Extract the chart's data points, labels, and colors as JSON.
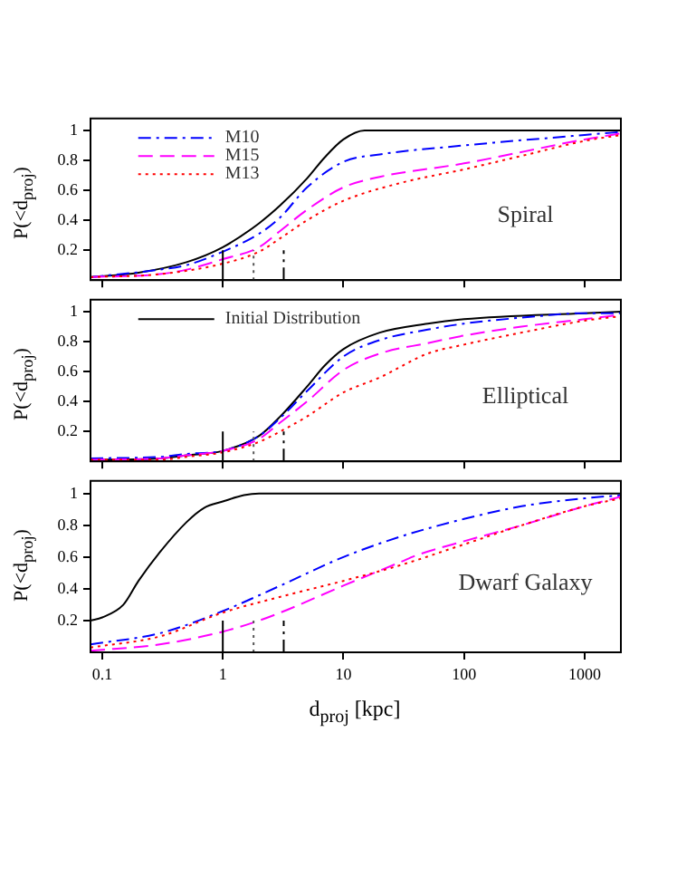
{
  "chart_data": [
    {
      "type": "line",
      "ylabel": "P(<d$_{proj}$)",
      "xlim": [
        0.08,
        2000
      ],
      "xticks": [
        0.1,
        1,
        10,
        100,
        1000
      ],
      "ylim": [
        0,
        1.08
      ],
      "yticks": [
        0.2,
        0.4,
        0.6,
        0.8,
        1
      ],
      "log": "x",
      "grid": false,
      "legend": "top left",
      "marker": "none",
      "tick_labels": "y",
      "annotations": [
        "Spiral"
      ],
      "series": [
        {
          "color": "#000000",
          "line_style": "solid",
          "x": [
            0.08,
            0.2,
            0.5,
            1,
            2,
            3,
            5,
            7,
            10,
            15,
            2000
          ],
          "values": [
            0.02,
            0.05,
            0.12,
            0.22,
            0.38,
            0.5,
            0.68,
            0.82,
            0.94,
            1,
            1
          ]
        },
        {
          "name": "M10",
          "color": "#0000ff",
          "line_style": "dashdot",
          "x": [
            0.08,
            0.3,
            0.5,
            1,
            2,
            3,
            5,
            10,
            20,
            100,
            1000,
            2000
          ],
          "values": [
            0.02,
            0.07,
            0.1,
            0.19,
            0.31,
            0.42,
            0.62,
            0.79,
            0.84,
            0.9,
            0.97,
            0.99
          ]
        },
        {
          "name": "M15",
          "color": "#ff00ff",
          "line_style": "dashed",
          "x": [
            0.08,
            0.3,
            0.5,
            1,
            2,
            3,
            5,
            10,
            20,
            100,
            1000,
            2000
          ],
          "values": [
            0.02,
            0.04,
            0.07,
            0.14,
            0.22,
            0.33,
            0.47,
            0.62,
            0.69,
            0.78,
            0.94,
            0.98
          ]
        },
        {
          "name": "M13",
          "color": "#ff0000",
          "line_style": "dotted",
          "x": [
            0.08,
            0.3,
            1,
            2,
            3,
            5,
            10,
            30,
            100,
            300,
            1000,
            2000
          ],
          "values": [
            0.02,
            0.04,
            0.11,
            0.19,
            0.28,
            0.4,
            0.53,
            0.65,
            0.74,
            0.83,
            0.93,
            0.97
          ]
        },
        {
          "color": "#000000",
          "line_style": "solid",
          "x": [
            1,
            1
          ],
          "values": [
            0,
            0.2
          ]
        },
        {
          "color": "#555555",
          "line_style": "dotted",
          "x": [
            1.8,
            1.8
          ],
          "values": [
            0,
            0.2
          ]
        },
        {
          "color": "#000000",
          "line_style": "dashdot",
          "x": [
            3.2,
            3.2
          ],
          "values": [
            0,
            0.2
          ]
        }
      ]
    },
    {
      "type": "line",
      "ylabel": "P(<d$_{proj}$)",
      "xlim": [
        0.08,
        2000
      ],
      "xticks": [
        0.1,
        1,
        10,
        100,
        1000
      ],
      "ylim": [
        0,
        1.08
      ],
      "yticks": [
        0.2,
        0.4,
        0.6,
        0.8,
        1
      ],
      "log": "x",
      "grid": false,
      "legend": "top left",
      "marker": "none",
      "tick_labels": "y",
      "annotations": [
        "Elliptical"
      ],
      "series": [
        {
          "name": "Initial Distribution",
          "color": "#000000",
          "line_style": "solid",
          "x": [
            0.08,
            0.3,
            0.5,
            1,
            2,
            3,
            5,
            7,
            10,
            20,
            50,
            100,
            1000,
            2000
          ],
          "values": [
            0.01,
            0.02,
            0.04,
            0.07,
            0.17,
            0.3,
            0.5,
            0.64,
            0.75,
            0.86,
            0.92,
            0.95,
            0.99,
            1
          ]
        },
        {
          "color": "#0000ff",
          "line_style": "dashdot",
          "x": [
            0.08,
            0.3,
            0.5,
            1,
            2,
            3,
            5,
            10,
            20,
            50,
            100,
            300,
            1000,
            2000
          ],
          "values": [
            0.02,
            0.03,
            0.05,
            0.07,
            0.17,
            0.29,
            0.47,
            0.7,
            0.81,
            0.88,
            0.92,
            0.96,
            0.99,
            0.99
          ]
        },
        {
          "color": "#ff00ff",
          "line_style": "dashed",
          "x": [
            0.08,
            0.3,
            0.5,
            1,
            2,
            3,
            5,
            10,
            20,
            50,
            100,
            300,
            1000,
            2000
          ],
          "values": [
            0.01,
            0.02,
            0.04,
            0.07,
            0.15,
            0.26,
            0.4,
            0.61,
            0.72,
            0.79,
            0.84,
            0.9,
            0.95,
            0.98
          ]
        },
        {
          "color": "#ff0000",
          "line_style": "dotted",
          "x": [
            0.08,
            0.3,
            0.5,
            1,
            2,
            3,
            5,
            10,
            20,
            50,
            100,
            300,
            1000,
            2000
          ],
          "values": [
            0.01,
            0.01,
            0.03,
            0.06,
            0.13,
            0.2,
            0.3,
            0.46,
            0.56,
            0.72,
            0.78,
            0.86,
            0.94,
            0.97
          ]
        },
        {
          "color": "#000000",
          "line_style": "solid",
          "x": [
            1,
            1
          ],
          "values": [
            0,
            0.2
          ]
        },
        {
          "color": "#555555",
          "line_style": "dotted",
          "x": [
            1.8,
            1.8
          ],
          "values": [
            0,
            0.2
          ]
        },
        {
          "color": "#000000",
          "line_style": "dashdot",
          "x": [
            3.2,
            3.2
          ],
          "values": [
            0,
            0.2
          ]
        }
      ]
    },
    {
      "type": "line",
      "xlabel": "d$_{proj}$ [kpc]",
      "ylabel": "P(<d$_{proj}$)",
      "xlim": [
        0.08,
        2000
      ],
      "xticks": [
        0.1,
        1,
        10,
        100,
        1000
      ],
      "ylim": [
        0,
        1.08
      ],
      "yticks": [
        0.2,
        0.4,
        0.6,
        0.8,
        1
      ],
      "log": "x",
      "grid": false,
      "marker": "none",
      "annotations": [
        "Dwarf Galaxy"
      ],
      "series": [
        {
          "color": "#000000",
          "line_style": "solid",
          "x": [
            0.08,
            0.1,
            0.15,
            0.2,
            0.3,
            0.5,
            0.7,
            1,
            1.5,
            2,
            2000
          ],
          "values": [
            0.2,
            0.22,
            0.3,
            0.45,
            0.63,
            0.82,
            0.91,
            0.95,
            0.99,
            1,
            1
          ]
        },
        {
          "color": "#0000ff",
          "line_style": "dashdot",
          "x": [
            0.08,
            0.3,
            1,
            3,
            10,
            30,
            100,
            300,
            1000,
            2000
          ],
          "values": [
            0.05,
            0.12,
            0.26,
            0.42,
            0.6,
            0.73,
            0.84,
            0.92,
            0.97,
            0.99
          ]
        },
        {
          "color": "#ff00ff",
          "line_style": "dashed",
          "x": [
            0.08,
            0.3,
            1,
            2,
            3,
            10,
            30,
            40,
            100,
            300,
            1000,
            2000
          ],
          "values": [
            0.01,
            0.05,
            0.13,
            0.2,
            0.25,
            0.42,
            0.57,
            0.61,
            0.7,
            0.8,
            0.92,
            0.98
          ]
        },
        {
          "color": "#ff0000",
          "line_style": "dotted",
          "x": [
            0.08,
            0.3,
            1,
            3,
            10,
            30,
            100,
            300,
            1000,
            2000
          ],
          "values": [
            0.03,
            0.1,
            0.25,
            0.35,
            0.45,
            0.55,
            0.68,
            0.8,
            0.92,
            0.97
          ]
        },
        {
          "color": "#000000",
          "line_style": "solid",
          "x": [
            1,
            1
          ],
          "values": [
            0,
            0.2
          ]
        },
        {
          "color": "#555555",
          "line_style": "dotted",
          "x": [
            1.8,
            1.8
          ],
          "values": [
            0,
            0.2
          ]
        },
        {
          "color": "#000000",
          "line_style": "dashdot",
          "x": [
            3.2,
            3.2
          ],
          "values": [
            0,
            0.2
          ]
        }
      ]
    }
  ]
}
